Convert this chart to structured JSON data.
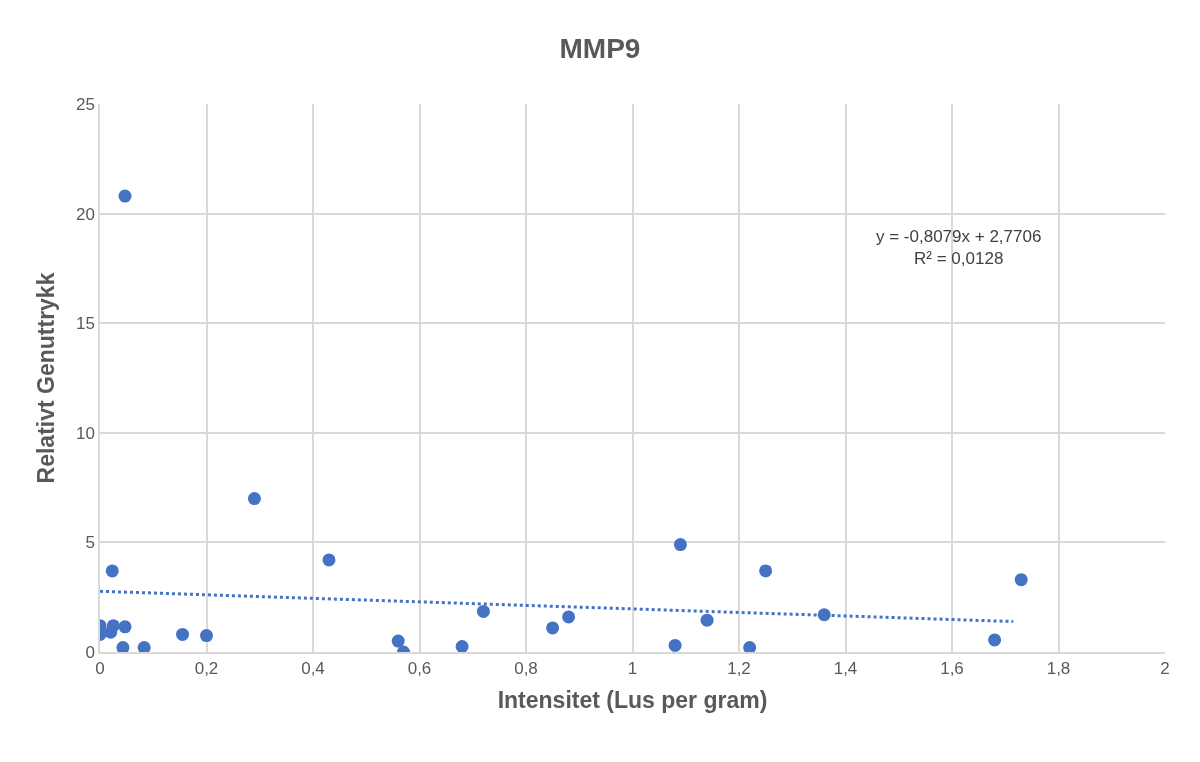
{
  "chart_data": {
    "type": "scatter",
    "title": "MMP9",
    "xlabel": "Intensitet (Lus per gram)",
    "ylabel": "Relativt Genuttrykk",
    "xlim": [
      0,
      2
    ],
    "xticks": [
      0,
      {
        "value": 0.2,
        "label": "0,2"
      },
      {
        "value": 0.4,
        "label": "0,4"
      },
      {
        "value": 0.6,
        "label": "0,6"
      },
      {
        "value": 0.8,
        "label": "0,8"
      },
      1,
      {
        "value": 1.2,
        "label": "1,2"
      },
      {
        "value": 1.4,
        "label": "1,4"
      },
      {
        "value": 1.6,
        "label": "1,6"
      },
      {
        "value": 1.8,
        "label": "1,8"
      },
      2
    ],
    "ylim": [
      0,
      25
    ],
    "yticks": [
      0,
      5,
      10,
      15,
      20,
      25
    ],
    "grid": true,
    "marker": "circle",
    "annotations": [
      "y = -0,8079x + 2,7706\nR² = 0,0128"
    ],
    "series": [
      {
        "color": "#4472c4",
        "x": [
          0,
          0,
          0.02,
          0.025,
          0.023,
          0.047,
          0.043,
          0.047,
          0.083,
          0.155,
          0.2,
          0.29,
          0.43,
          0.56,
          0.57,
          0.68,
          0.72,
          0.85,
          0.88,
          1.08,
          1.09,
          1.14,
          1.22,
          1.25,
          1.36,
          1.68,
          1.73
        ],
        "values": [
          0.8,
          1.2,
          0.9,
          1.2,
          3.7,
          1.15,
          0.2,
          20.8,
          0.2,
          0.8,
          0.75,
          7.0,
          4.2,
          0.5,
          0.0,
          0.25,
          1.85,
          1.1,
          1.6,
          0.3,
          4.9,
          1.45,
          0.2,
          3.7,
          1.7,
          0.55,
          3.3
        ]
      },
      {
        "type": "line",
        "color": "#4472c4",
        "line_style": "dotted",
        "marker": "none",
        "x": [
          0,
          1.715
        ],
        "values": [
          2.77,
          1.39
        ]
      }
    ]
  }
}
